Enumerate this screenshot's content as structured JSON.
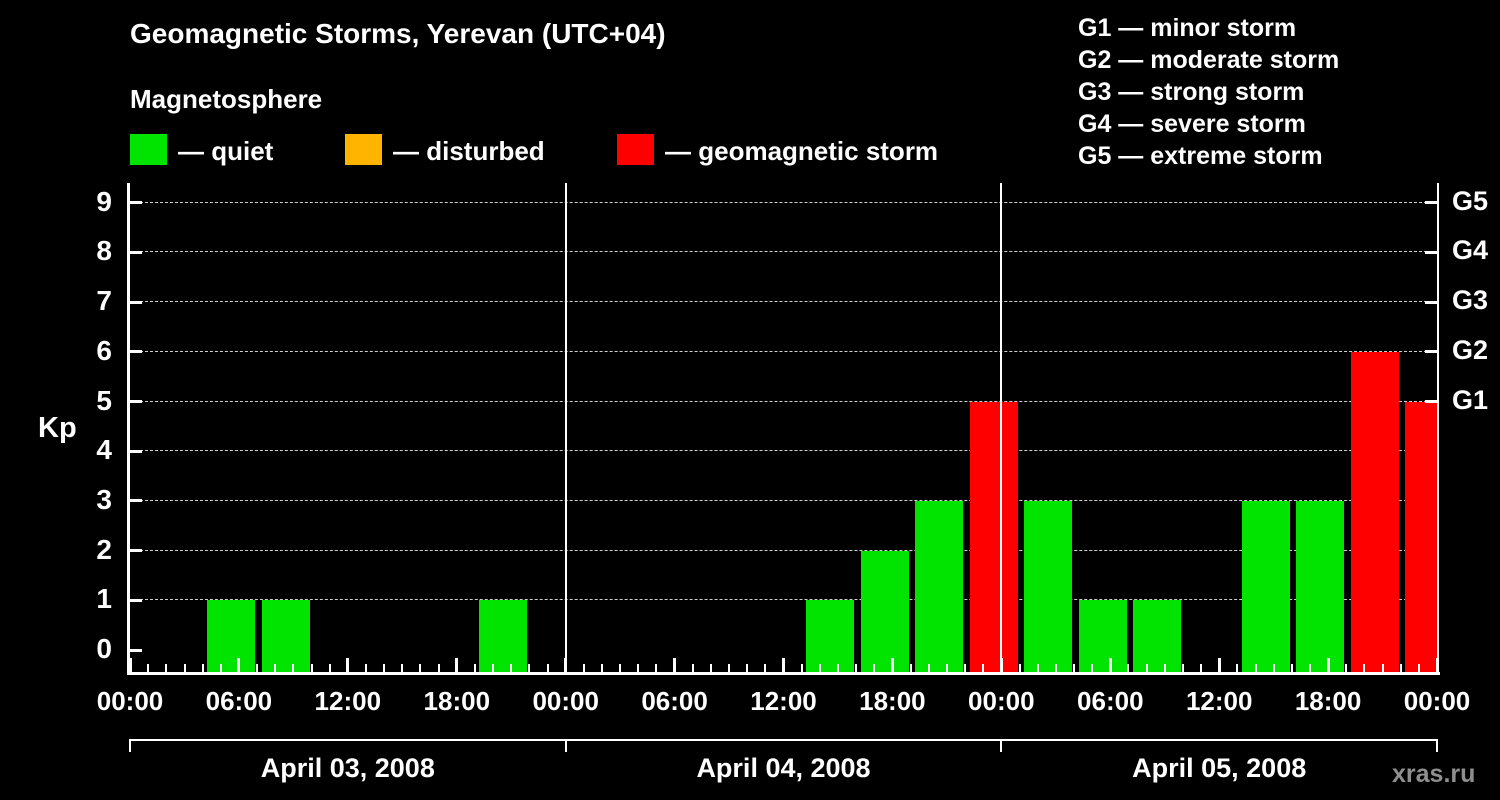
{
  "header": {
    "title": "Geomagnetic Storms, Yerevan (UTC+04)",
    "subtitle": "Magnetosphere"
  },
  "legend": {
    "items": [
      {
        "label": "— quiet",
        "color": "#00e400"
      },
      {
        "label": "— disturbed",
        "color": "#ffb400"
      },
      {
        "label": "— geomagnetic storm",
        "color": "#ff0000"
      }
    ],
    "storm_scale": [
      "G1 — minor storm",
      "G2 — moderate storm",
      "G3 — strong storm",
      "G4 — severe storm",
      "G5 — extreme storm"
    ]
  },
  "watermark": "xras.ru",
  "chart_data": {
    "type": "bar",
    "title": "Geomagnetic Storms, Yerevan (UTC+04)",
    "ylabel": "Kp",
    "ylim": [
      0,
      9
    ],
    "yticks": [
      0,
      1,
      2,
      3,
      4,
      5,
      6,
      7,
      8,
      9
    ],
    "grid": true,
    "interval_hours": 3,
    "x_tick_labels": [
      "00:00",
      "06:00",
      "12:00",
      "18:00"
    ],
    "end_tick_label": "00:00",
    "right_axis_labels": [
      {
        "kp": 9,
        "label": "G5"
      },
      {
        "kp": 8,
        "label": "G4"
      },
      {
        "kp": 7,
        "label": "G3"
      },
      {
        "kp": 6,
        "label": "G2"
      },
      {
        "kp": 5,
        "label": "G1"
      }
    ],
    "thresholds": {
      "disturbed_kp": 4,
      "storm_min_kp": 5
    },
    "colors": {
      "quiet": "#00e400",
      "disturbed": "#ffb400",
      "storm": "#ff0000",
      "axis": "#ffffff",
      "grid": "#cfcfcf"
    },
    "days": [
      {
        "date": "April 03, 2008",
        "kp_values": [
          0,
          1,
          1,
          0,
          0,
          0,
          1,
          0
        ]
      },
      {
        "date": "April 04, 2008",
        "kp_values": [
          0,
          0,
          0,
          0,
          1,
          2,
          3,
          5
        ]
      },
      {
        "date": "April 05, 2008",
        "kp_values": [
          3,
          1,
          1,
          0,
          3,
          3,
          6,
          5
        ]
      }
    ]
  }
}
